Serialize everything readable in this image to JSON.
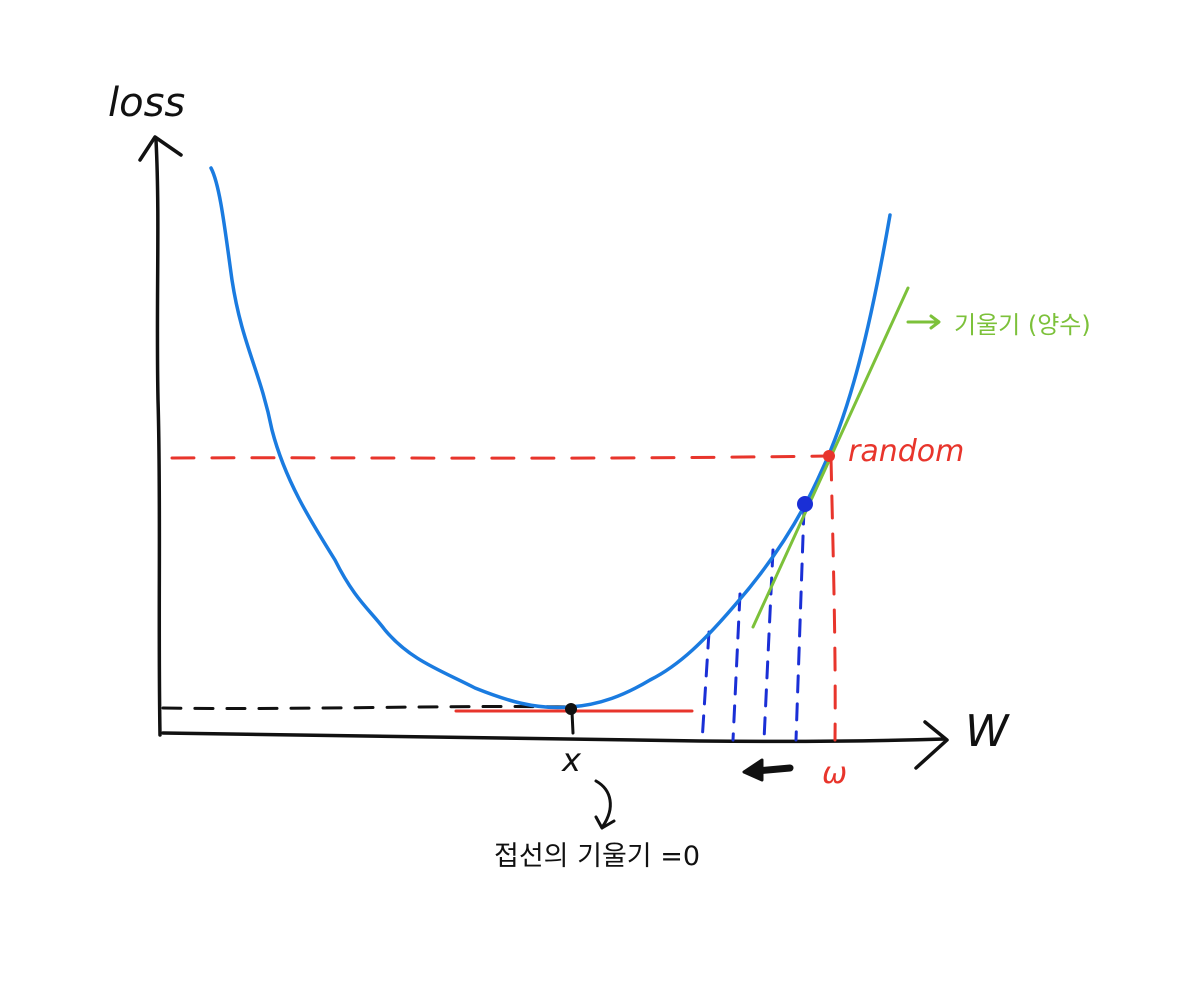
{
  "axes": {
    "y_label": "loss",
    "x_label": "W"
  },
  "labels": {
    "start_point": "random",
    "start_weight": "ω",
    "minimum_weight": "x",
    "minimum_note": "접선의 기울기 =0",
    "gradient_note": "기울기 (양수)"
  },
  "colors": {
    "axis": "#111111",
    "curve": "#1a7be0",
    "step_lines": "#1a2fd6",
    "random_guides": "#e8352c",
    "tangent_minimum": "#e8352c",
    "tangent_slope": "#7cc13a",
    "step_point": "#1a2fd6"
  },
  "icons": {
    "gradient_arrow": "right-arrow-icon",
    "descent_arrow": "left-arrow-icon",
    "note_arrow": "curved-down-arrow-icon"
  }
}
